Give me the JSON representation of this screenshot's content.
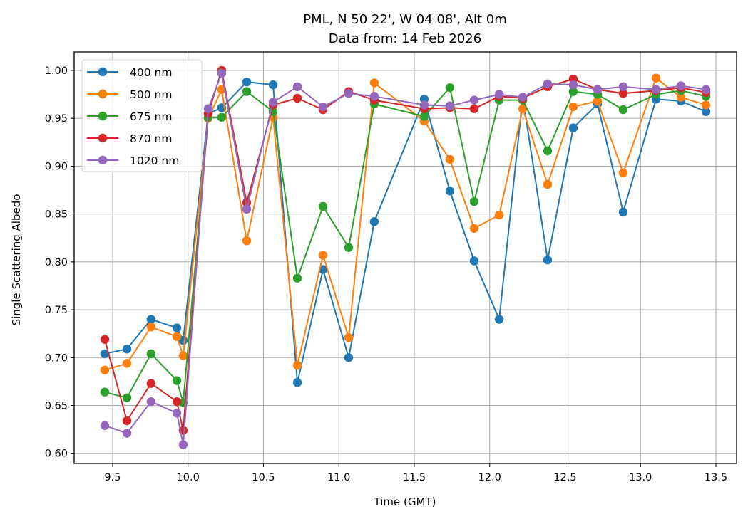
{
  "chart_data": {
    "type": "line",
    "title": [
      "PML, N 50 22', W 04 08', Alt 0m",
      "Data from: 14 Feb 2026"
    ],
    "xlabel": "Time (GMT)",
    "ylabel": "Single Scattering Albedo",
    "xlim": [
      9.245,
      13.637
    ],
    "ylim": [
      0.5894,
      1.0193
    ],
    "xticks": [
      9.5,
      10.0,
      10.5,
      11.0,
      11.5,
      12.0,
      12.5,
      13.0,
      13.5
    ],
    "xtick_labels": [
      "9.5",
      "10.0",
      "10.5",
      "11.0",
      "11.5",
      "12.0",
      "12.5",
      "13.0",
      "13.5"
    ],
    "yticks": [
      0.6,
      0.65,
      0.7,
      0.75,
      0.8,
      0.85,
      0.9,
      0.95,
      1.0
    ],
    "ytick_labels": [
      "0.60",
      "0.65",
      "0.70",
      "0.75",
      "0.80",
      "0.85",
      "0.90",
      "0.95",
      "1.00"
    ],
    "grid": true,
    "legend_position": "top-left",
    "series": [
      {
        "name": "400 nm",
        "color": "#1f77b4",
        "x": [
          9.448,
          9.595,
          9.755,
          9.926,
          9.968,
          10.134,
          10.223,
          10.389,
          10.564,
          10.725,
          10.895,
          11.065,
          11.235,
          11.566,
          11.736,
          11.897,
          12.063,
          12.219,
          12.384,
          12.554,
          12.715,
          12.885,
          13.103,
          13.268,
          13.434
        ],
        "values": [
          0.704,
          0.709,
          0.74,
          0.731,
          0.718,
          0.955,
          0.961,
          0.988,
          0.985,
          0.674,
          0.792,
          0.7,
          0.842,
          0.97,
          0.874,
          0.801,
          0.74,
          0.972,
          0.802,
          0.94,
          0.965,
          0.852,
          0.97,
          0.968,
          0.957
        ]
      },
      {
        "name": "500 nm",
        "color": "#ff7f0e",
        "x": [
          9.448,
          9.595,
          9.755,
          9.926,
          9.968,
          10.134,
          10.223,
          10.389,
          10.564,
          10.725,
          10.895,
          11.065,
          11.235,
          11.566,
          11.736,
          11.897,
          12.063,
          12.219,
          12.384,
          12.554,
          12.715,
          12.885,
          13.103,
          13.268,
          13.434
        ],
        "values": [
          0.687,
          0.694,
          0.732,
          0.722,
          0.702,
          0.95,
          0.98,
          0.822,
          0.951,
          0.692,
          0.807,
          0.721,
          0.987,
          0.947,
          0.907,
          0.835,
          0.849,
          0.96,
          0.881,
          0.962,
          0.968,
          0.893,
          0.992,
          0.972,
          0.964
        ]
      },
      {
        "name": "675 nm",
        "color": "#2ca02c",
        "x": [
          9.448,
          9.595,
          9.755,
          9.926,
          9.968,
          10.134,
          10.223,
          10.389,
          10.564,
          10.725,
          10.895,
          11.065,
          11.235,
          11.566,
          11.736,
          11.897,
          12.063,
          12.219,
          12.384,
          12.554,
          12.715,
          12.885,
          13.103,
          13.268,
          13.434
        ],
        "values": [
          0.664,
          0.658,
          0.704,
          0.676,
          0.653,
          0.951,
          0.951,
          0.978,
          0.957,
          0.783,
          0.858,
          0.815,
          0.965,
          0.952,
          0.982,
          0.863,
          0.969,
          0.969,
          0.916,
          0.978,
          0.975,
          0.959,
          0.975,
          0.979,
          0.973
        ]
      },
      {
        "name": "870 nm",
        "color": "#d62728",
        "x": [
          9.448,
          9.595,
          9.755,
          9.926,
          9.968,
          10.134,
          10.223,
          10.389,
          10.564,
          10.725,
          10.895,
          11.065,
          11.235,
          11.566,
          11.736,
          11.897,
          12.063,
          12.219,
          12.384,
          12.554,
          12.715,
          12.885,
          13.103,
          13.268,
          13.434
        ],
        "values": [
          0.719,
          0.634,
          0.673,
          0.654,
          0.624,
          0.955,
          1.0,
          0.862,
          0.964,
          0.971,
          0.959,
          0.978,
          0.969,
          0.96,
          0.961,
          0.96,
          0.973,
          0.971,
          0.983,
          0.991,
          0.98,
          0.976,
          0.979,
          0.982,
          0.977
        ]
      },
      {
        "name": "1020 nm",
        "color": "#9467bd",
        "x": [
          9.448,
          9.595,
          9.755,
          9.926,
          9.968,
          10.134,
          10.223,
          10.389,
          10.564,
          10.725,
          10.895,
          11.065,
          11.235,
          11.566,
          11.736,
          11.897,
          12.063,
          12.219,
          12.384,
          12.554,
          12.715,
          12.885,
          13.103,
          13.268,
          13.434
        ],
        "values": [
          0.629,
          0.621,
          0.654,
          0.642,
          0.609,
          0.96,
          0.997,
          0.855,
          0.967,
          0.983,
          0.962,
          0.976,
          0.973,
          0.964,
          0.963,
          0.969,
          0.975,
          0.972,
          0.986,
          0.985,
          0.98,
          0.983,
          0.98,
          0.984,
          0.98
        ]
      }
    ]
  }
}
